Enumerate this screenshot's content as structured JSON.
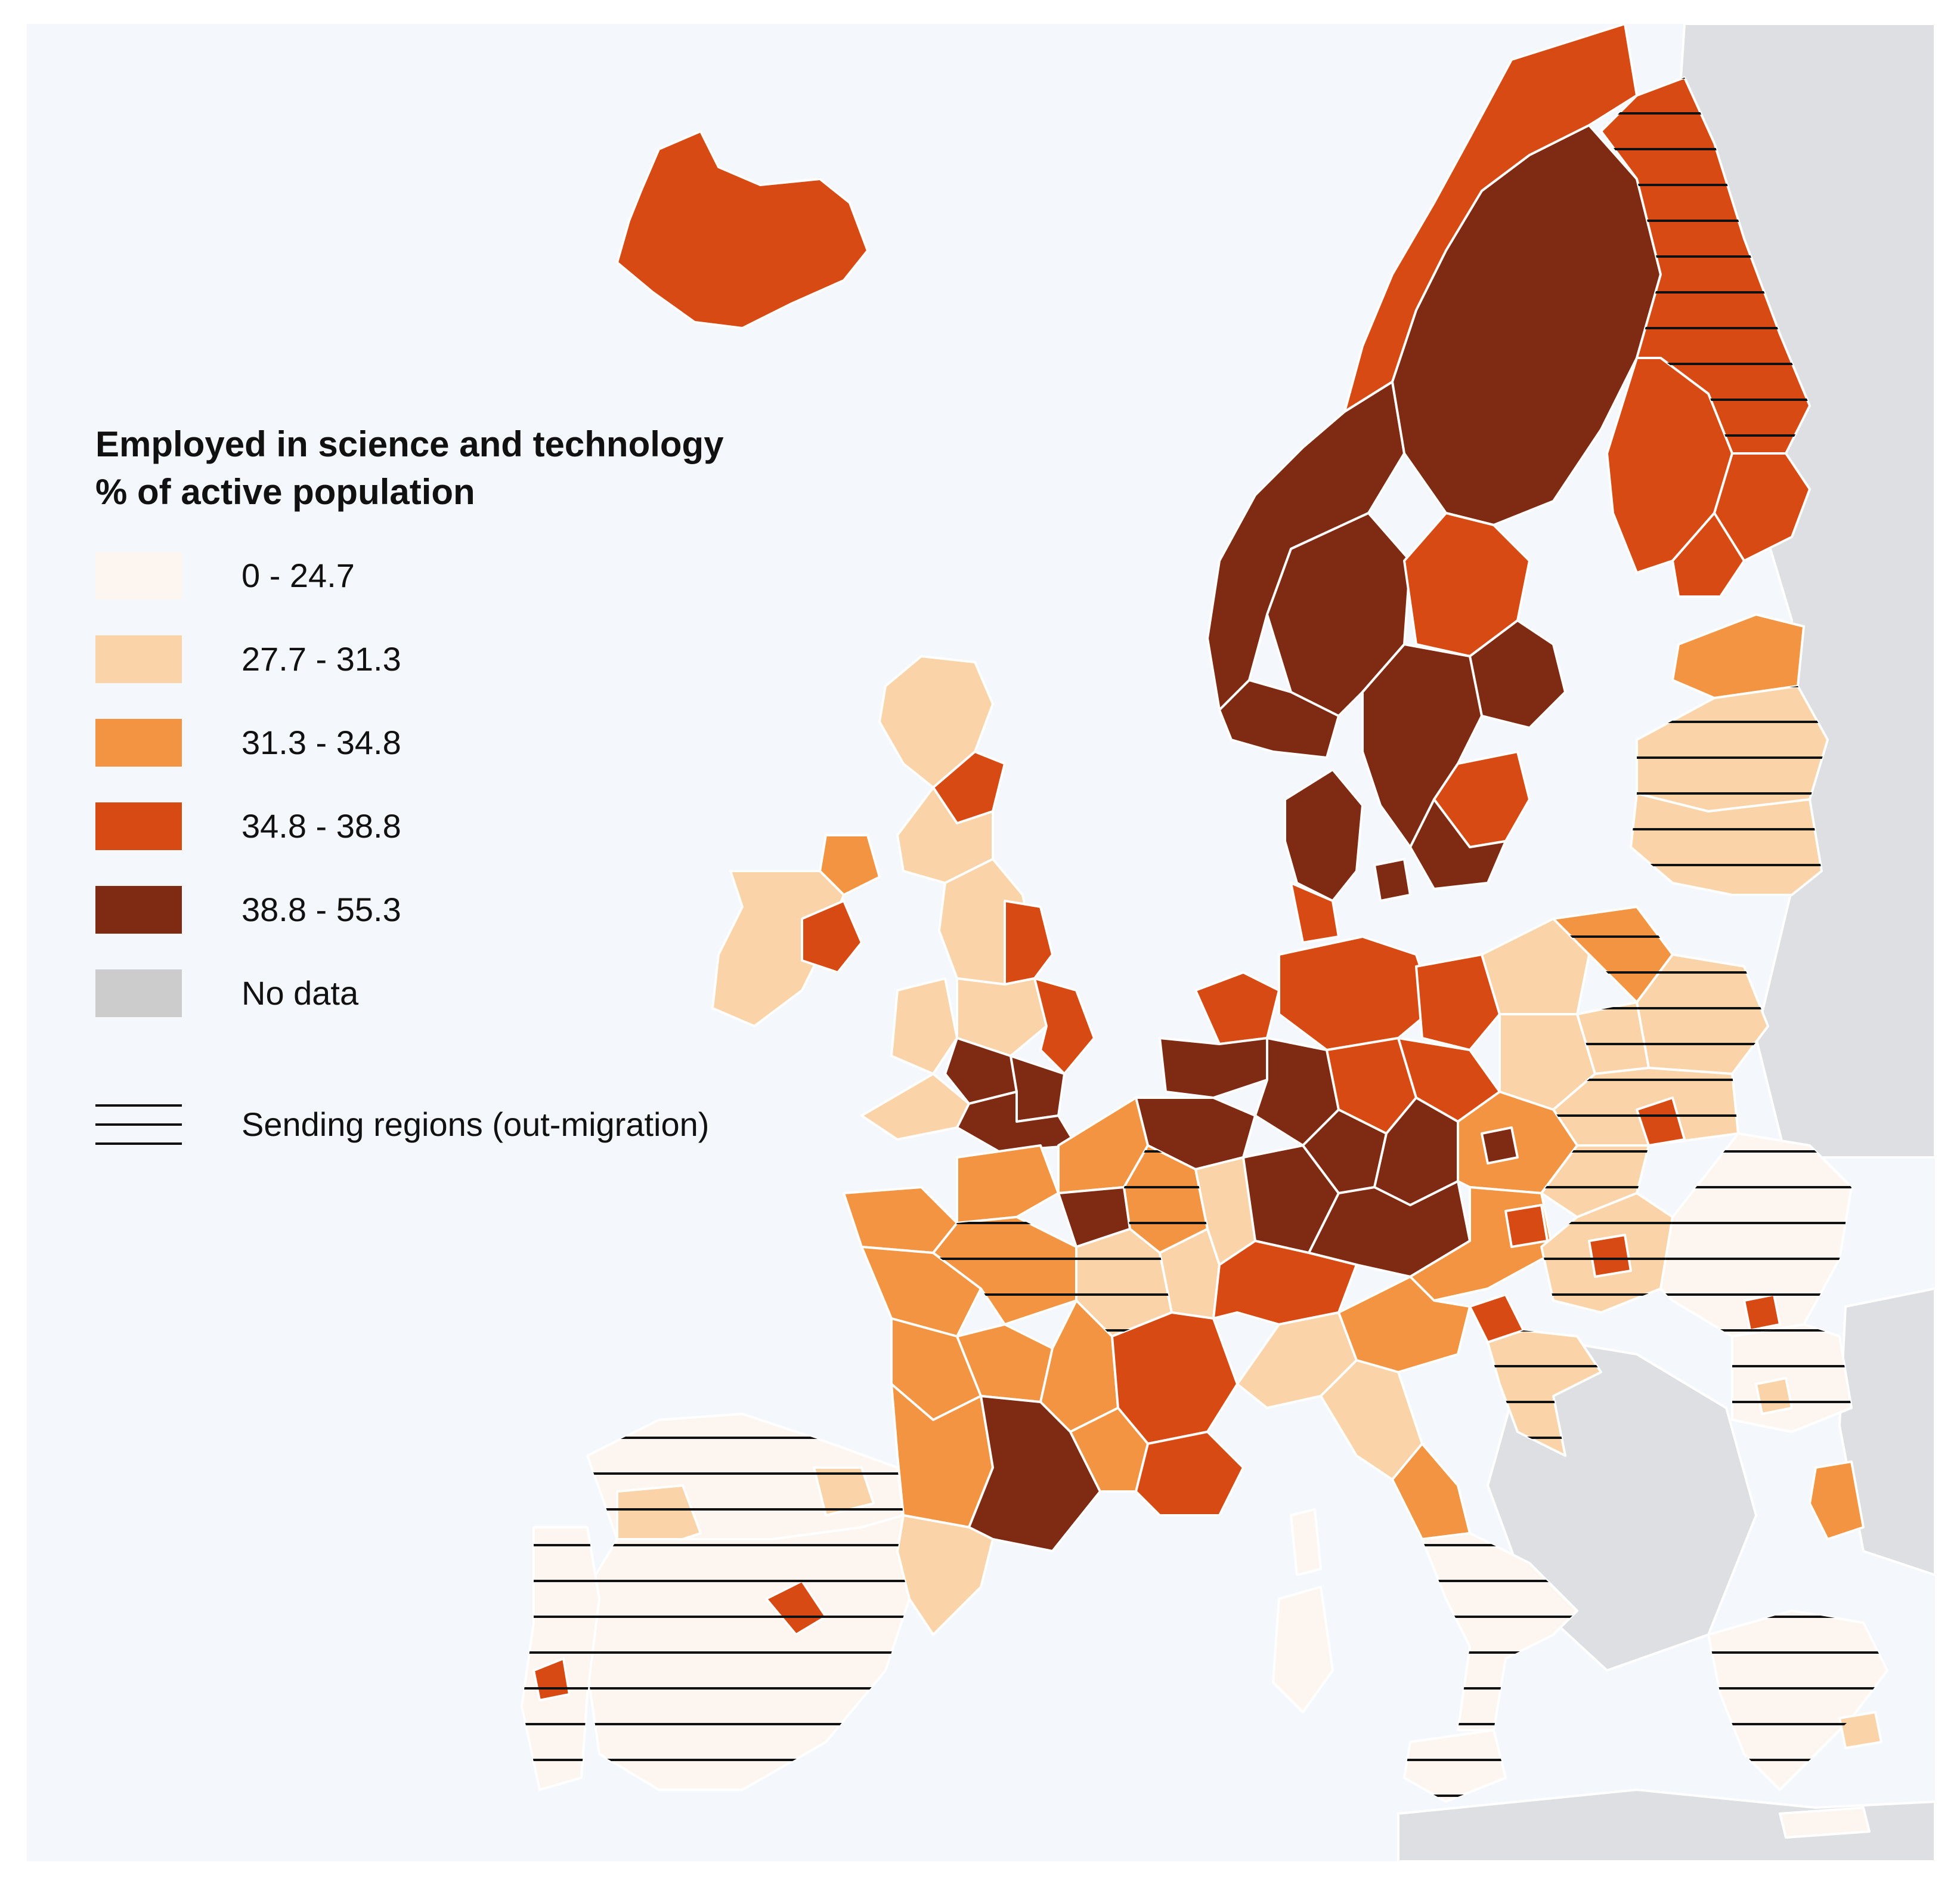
{
  "legend": {
    "title_line1": "Employed in science and technology",
    "title_line2": "% of active population",
    "classes": [
      {
        "label": "0 - 24.7",
        "color": "#fdf6f0"
      },
      {
        "label": "27.7 - 31.3",
        "color": "#fbd3a9"
      },
      {
        "label": "31.3 - 34.8",
        "color": "#f29442"
      },
      {
        "label": "34.8 - 38.8",
        "color": "#d84a14"
      },
      {
        "label": "38.8 - 55.3",
        "color": "#7f2a12"
      },
      {
        "label": "No data",
        "color": "#cccccc"
      }
    ],
    "hatch_label": "Sending regions (out-migration)"
  },
  "map": {
    "sea_color": "#f4f7fb",
    "outside_color": "#dedfe2",
    "border_color": "#ffffff",
    "hatch_color": "#111111"
  }
}
